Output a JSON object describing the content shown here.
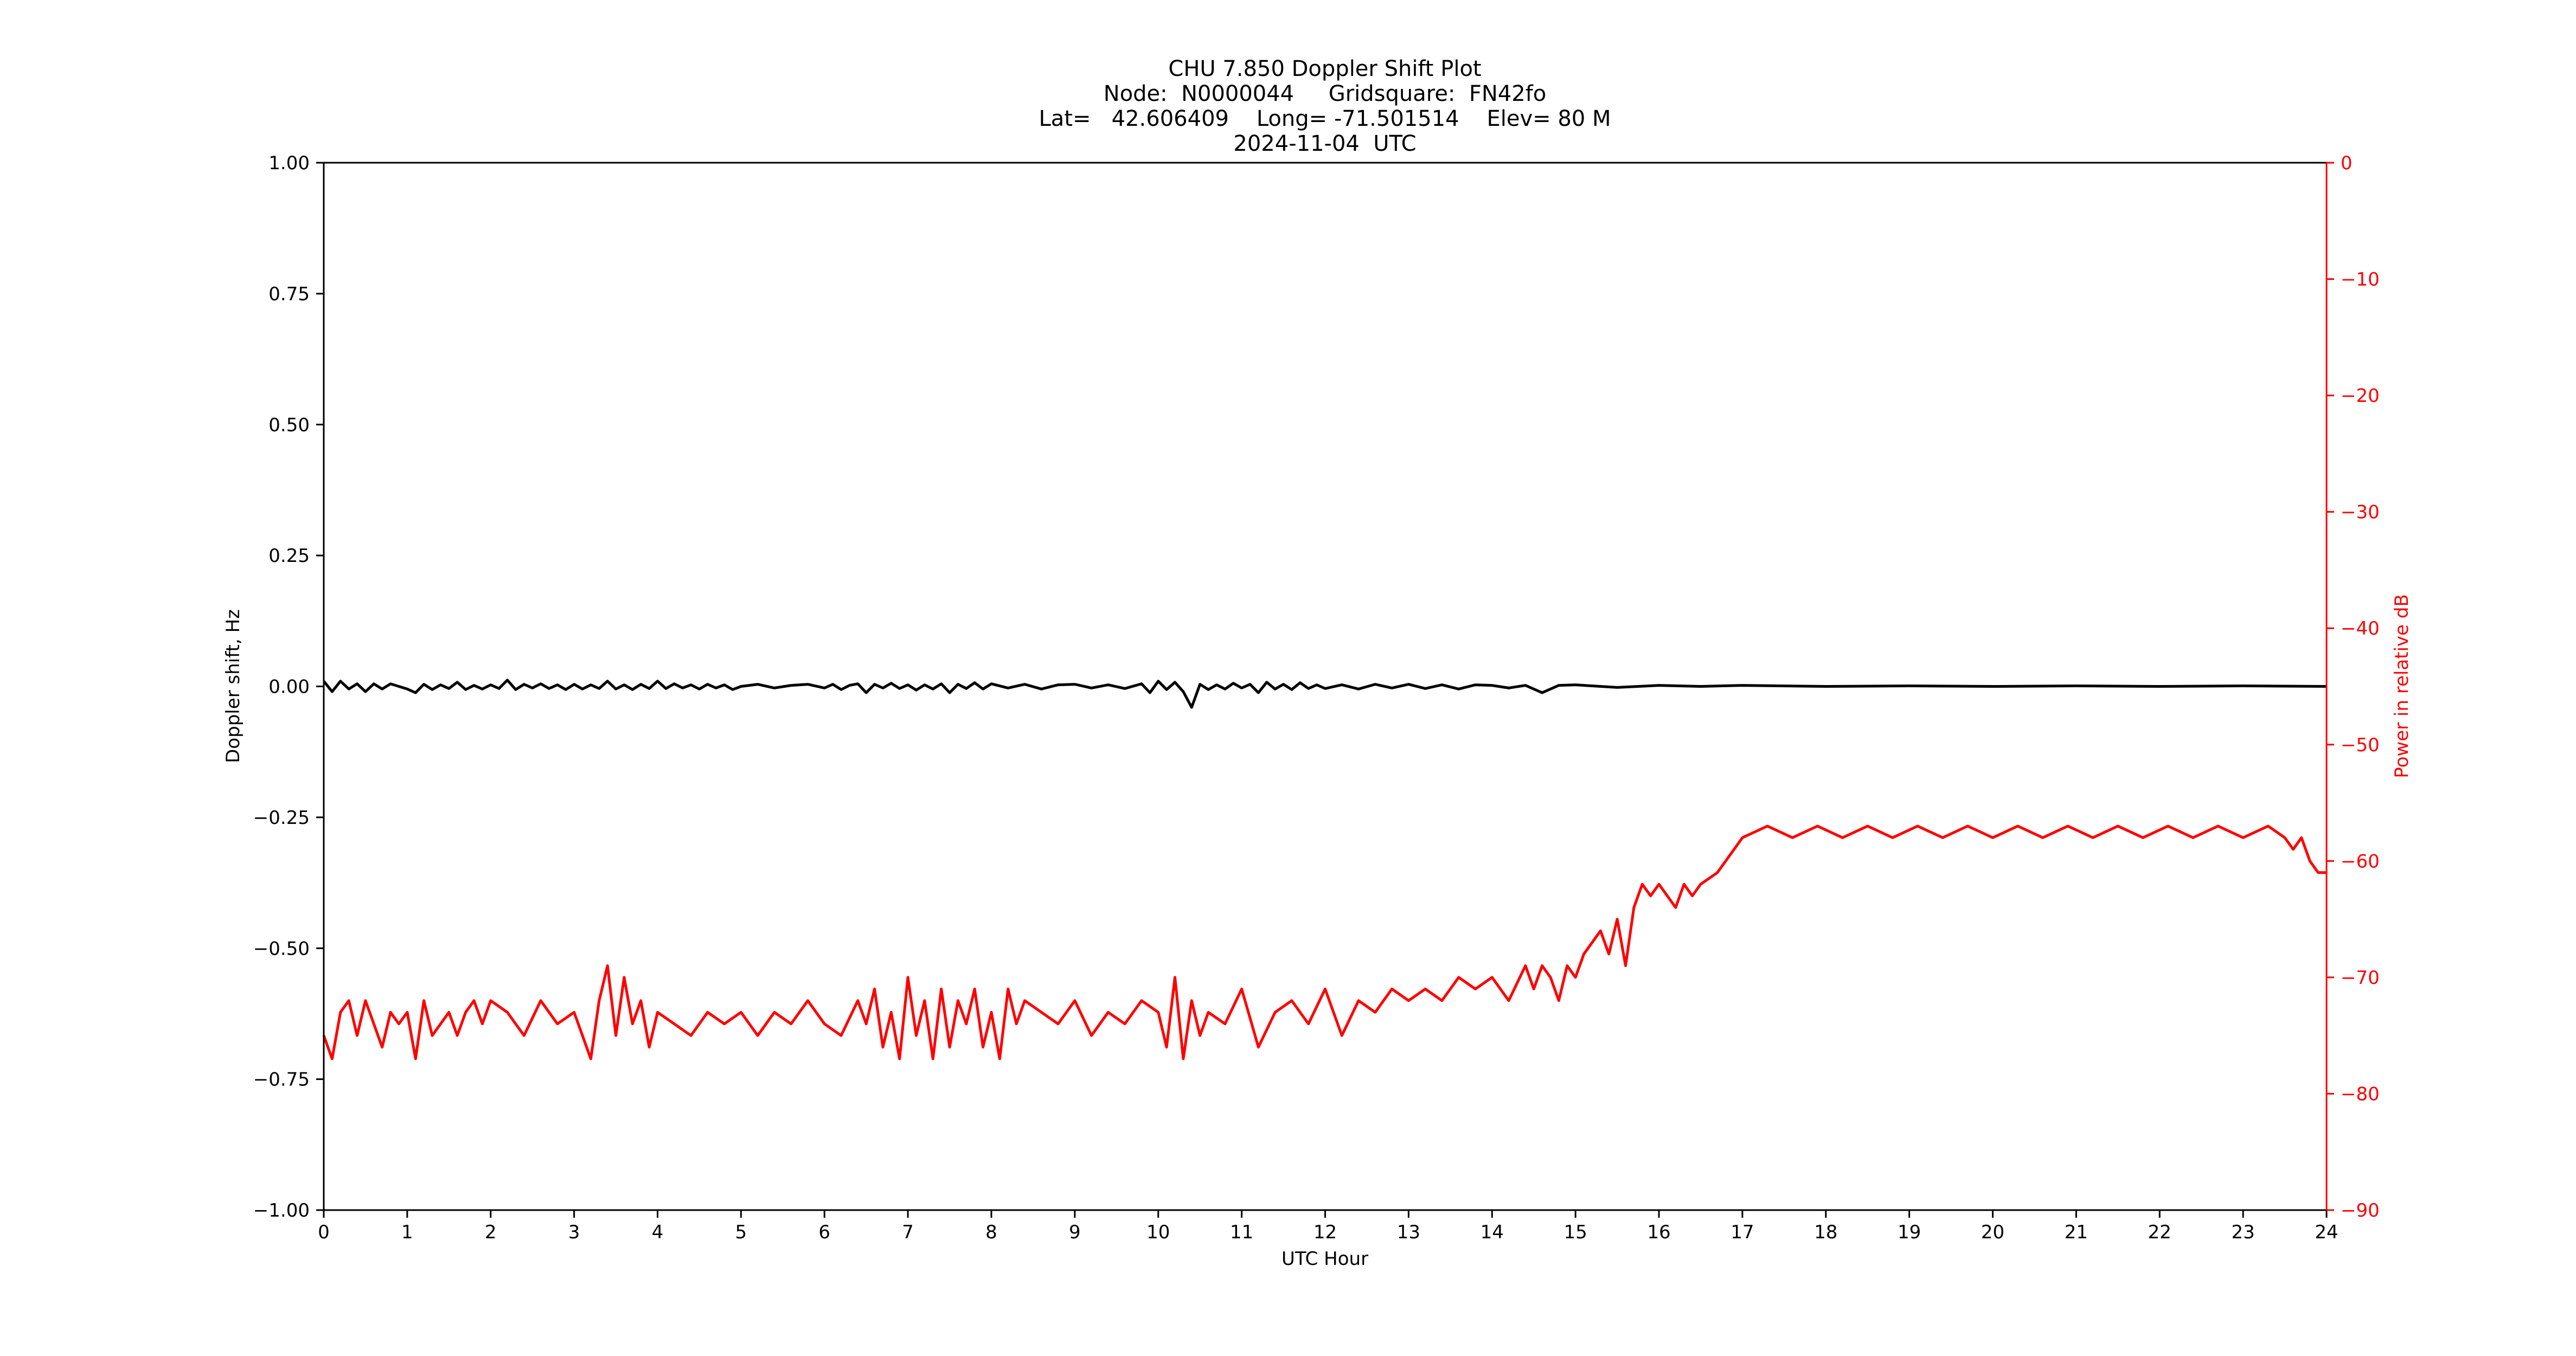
{
  "chart_data": {
    "type": "line",
    "title_lines": [
      "CHU 7.850 Doppler Shift Plot",
      "Node:  N0000044     Gridsquare:  FN42fo",
      "Lat=   42.606409    Long= -71.501514    Elev= 80 M",
      "2024-11-04  UTC"
    ],
    "xlabel": "UTC Hour",
    "ylabel": "Doppler shift, Hz",
    "y2label": "Power in relative dB",
    "xlim": [
      0,
      24
    ],
    "ylim": [
      -1.0,
      1.0
    ],
    "y2lim": [
      -90,
      0
    ],
    "x_ticks": [
      0,
      1,
      2,
      3,
      4,
      5,
      6,
      7,
      8,
      9,
      10,
      11,
      12,
      13,
      14,
      15,
      16,
      17,
      18,
      19,
      20,
      21,
      22,
      23,
      24
    ],
    "x_tick_labels": [
      "0",
      "1",
      "2",
      "3",
      "4",
      "5",
      "6",
      "7",
      "8",
      "9",
      "10",
      "11",
      "12",
      "13",
      "14",
      "15",
      "16",
      "17",
      "18",
      "19",
      "20",
      "21",
      "22",
      "23",
      "24"
    ],
    "y_ticks": [
      -1.0,
      -0.75,
      -0.5,
      -0.25,
      0.0,
      0.25,
      0.5,
      0.75,
      1.0
    ],
    "y_tick_labels": [
      "−1.00",
      "−0.75",
      "−0.50",
      "−0.25",
      "0.00",
      "0.25",
      "0.50",
      "0.75",
      "1.00"
    ],
    "y2_ticks": [
      -90,
      -80,
      -70,
      -60,
      -50,
      -40,
      -30,
      -20,
      -10,
      0
    ],
    "y2_tick_labels": [
      "−90",
      "−80",
      "−70",
      "−60",
      "−50",
      "−40",
      "−30",
      "−20",
      "−10",
      "0"
    ],
    "grid": false,
    "colors": {
      "doppler": "#000000",
      "power": "#ff0000",
      "axis": "#000000",
      "y2_axis": "#ff0000"
    },
    "series": [
      {
        "axis": "left",
        "x": [
          0,
          0.1,
          0.2,
          0.3,
          0.4,
          0.5,
          0.6,
          0.7,
          0.8,
          0.9,
          1.0,
          1.1,
          1.2,
          1.3,
          1.4,
          1.5,
          1.6,
          1.7,
          1.8,
          1.9,
          2.0,
          2.1,
          2.2,
          2.3,
          2.4,
          2.5,
          2.6,
          2.7,
          2.8,
          2.9,
          3.0,
          3.1,
          3.2,
          3.3,
          3.4,
          3.5,
          3.6,
          3.7,
          3.8,
          3.9,
          4.0,
          4.1,
          4.2,
          4.3,
          4.4,
          4.5,
          4.6,
          4.7,
          4.8,
          4.9,
          5.0,
          5.2,
          5.4,
          5.6,
          5.8,
          6.0,
          6.1,
          6.2,
          6.3,
          6.4,
          6.5,
          6.6,
          6.7,
          6.8,
          6.9,
          7.0,
          7.1,
          7.2,
          7.3,
          7.4,
          7.5,
          7.6,
          7.7,
          7.8,
          7.9,
          8.0,
          8.2,
          8.4,
          8.6,
          8.8,
          9.0,
          9.2,
          9.4,
          9.6,
          9.8,
          9.9,
          10.0,
          10.1,
          10.2,
          10.3,
          10.4,
          10.5,
          10.6,
          10.7,
          10.8,
          10.9,
          11.0,
          11.1,
          11.2,
          11.3,
          11.4,
          11.5,
          11.6,
          11.7,
          11.8,
          11.9,
          12.0,
          12.2,
          12.4,
          12.6,
          12.8,
          13.0,
          13.2,
          13.4,
          13.6,
          13.8,
          14.0,
          14.2,
          14.4,
          14.6,
          14.8,
          15.0,
          15.5,
          16.0,
          16.5,
          17.0,
          18.0,
          19.0,
          20.0,
          21.0,
          22.0,
          23.0,
          24.0
        ],
        "values": [
          0.01,
          -0.01,
          0.01,
          -0.005,
          0.005,
          -0.01,
          0.005,
          -0.005,
          0.005,
          0.0,
          -0.005,
          -0.012,
          0.004,
          -0.006,
          0.003,
          -0.004,
          0.008,
          -0.006,
          0.002,
          -0.005,
          0.003,
          -0.004,
          0.012,
          -0.006,
          0.004,
          -0.003,
          0.005,
          -0.004,
          0.003,
          -0.006,
          0.004,
          -0.005,
          0.003,
          -0.004,
          0.01,
          -0.005,
          0.003,
          -0.006,
          0.004,
          -0.004,
          0.01,
          -0.004,
          0.005,
          -0.003,
          0.003,
          -0.005,
          0.004,
          -0.003,
          0.003,
          -0.006,
          0.0,
          0.004,
          -0.003,
          0.002,
          0.004,
          -0.003,
          0.004,
          -0.006,
          0.002,
          0.005,
          -0.012,
          0.004,
          -0.003,
          0.006,
          -0.004,
          0.003,
          -0.007,
          0.003,
          -0.005,
          0.005,
          -0.012,
          0.004,
          -0.004,
          0.007,
          -0.005,
          0.005,
          -0.003,
          0.004,
          -0.005,
          0.003,
          0.004,
          -0.003,
          0.003,
          -0.004,
          0.005,
          -0.012,
          0.01,
          -0.006,
          0.008,
          -0.01,
          -0.04,
          0.004,
          -0.006,
          0.003,
          -0.005,
          0.006,
          -0.003,
          0.004,
          -0.012,
          0.008,
          -0.005,
          0.004,
          -0.006,
          0.007,
          -0.004,
          0.003,
          -0.004,
          0.003,
          -0.005,
          0.004,
          -0.003,
          0.004,
          -0.004,
          0.003,
          -0.005,
          0.003,
          0.002,
          -0.003,
          0.002,
          -0.012,
          0.002,
          0.003,
          -0.002,
          0.002,
          0.0,
          0.002,
          0.0,
          0.001,
          0.0,
          0.001,
          0.0,
          0.001,
          0.0
        ]
      },
      {
        "axis": "right",
        "x": [
          0,
          0.1,
          0.2,
          0.3,
          0.4,
          0.5,
          0.6,
          0.7,
          0.8,
          0.9,
          1.0,
          1.1,
          1.2,
          1.3,
          1.4,
          1.5,
          1.6,
          1.7,
          1.8,
          1.9,
          2.0,
          2.2,
          2.4,
          2.6,
          2.8,
          3.0,
          3.2,
          3.3,
          3.4,
          3.5,
          3.6,
          3.7,
          3.8,
          3.9,
          4.0,
          4.2,
          4.4,
          4.6,
          4.8,
          5.0,
          5.2,
          5.4,
          5.6,
          5.8,
          6.0,
          6.2,
          6.4,
          6.5,
          6.6,
          6.7,
          6.8,
          6.9,
          7.0,
          7.1,
          7.2,
          7.3,
          7.4,
          7.5,
          7.6,
          7.7,
          7.8,
          7.9,
          8.0,
          8.1,
          8.2,
          8.3,
          8.4,
          8.6,
          8.8,
          9.0,
          9.2,
          9.4,
          9.6,
          9.8,
          10.0,
          10.1,
          10.2,
          10.3,
          10.4,
          10.5,
          10.6,
          10.8,
          11.0,
          11.2,
          11.4,
          11.6,
          11.8,
          12.0,
          12.2,
          12.4,
          12.6,
          12.8,
          13.0,
          13.2,
          13.4,
          13.6,
          13.8,
          14.0,
          14.2,
          14.4,
          14.5,
          14.6,
          14.7,
          14.8,
          14.9,
          15.0,
          15.1,
          15.2,
          15.3,
          15.4,
          15.5,
          15.6,
          15.7,
          15.8,
          15.9,
          16.0,
          16.1,
          16.2,
          16.3,
          16.4,
          16.5,
          16.7,
          17.0,
          17.3,
          17.6,
          17.9,
          18.2,
          18.5,
          18.8,
          19.1,
          19.4,
          19.7,
          20.0,
          20.3,
          20.6,
          20.9,
          21.2,
          21.5,
          21.8,
          22.1,
          22.4,
          22.7,
          23.0,
          23.3,
          23.5,
          23.6,
          23.7,
          23.8,
          23.9,
          24.0
        ],
        "values": [
          -75,
          -77,
          -73,
          -72,
          -75,
          -72,
          -74,
          -76,
          -73,
          -74,
          -73,
          -77,
          -72,
          -75,
          -74,
          -73,
          -75,
          -73,
          -72,
          -74,
          -72,
          -73,
          -75,
          -72,
          -74,
          -73,
          -77,
          -72,
          -69,
          -75,
          -70,
          -74,
          -72,
          -76,
          -73,
          -74,
          -75,
          -73,
          -74,
          -73,
          -75,
          -73,
          -74,
          -72,
          -74,
          -75,
          -72,
          -74,
          -71,
          -76,
          -73,
          -77,
          -70,
          -75,
          -72,
          -77,
          -71,
          -76,
          -72,
          -74,
          -71,
          -76,
          -73,
          -77,
          -71,
          -74,
          -72,
          -73,
          -74,
          -72,
          -75,
          -73,
          -74,
          -72,
          -73,
          -76,
          -70,
          -77,
          -72,
          -75,
          -73,
          -74,
          -71,
          -76,
          -73,
          -72,
          -74,
          -71,
          -75,
          -72,
          -73,
          -71,
          -72,
          -71,
          -72,
          -70,
          -71,
          -70,
          -72,
          -69,
          -71,
          -69,
          -70,
          -72,
          -69,
          -70,
          -68,
          -67,
          -66,
          -68,
          -65,
          -69,
          -64,
          -62,
          -63,
          -62,
          -63,
          -64,
          -62,
          -63,
          -62,
          -61,
          -58,
          -57,
          -58,
          -57,
          -58,
          -57,
          -58,
          -57,
          -58,
          -57,
          -58,
          -57,
          -58,
          -57,
          -58,
          -57,
          -58,
          -57,
          -58,
          -57,
          -58,
          -57,
          -58,
          -59,
          -58,
          -60,
          -61,
          -61
        ]
      }
    ]
  }
}
